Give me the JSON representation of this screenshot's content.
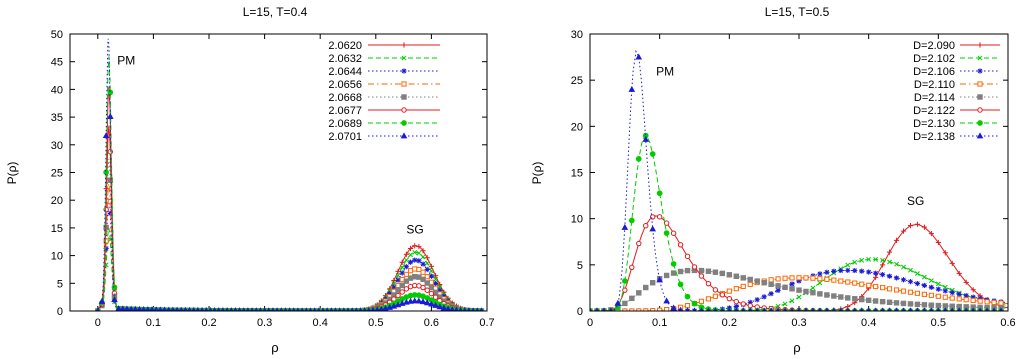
{
  "chart_data": [
    {
      "type": "line",
      "title": "L=15, T=0.4",
      "xlabel": "ρ",
      "ylabel": "P(ρ)",
      "xlim": [
        -0.05,
        0.7
      ],
      "ylim": [
        0,
        50
      ],
      "xticks": [
        0,
        0.1,
        0.2,
        0.3,
        0.4,
        0.5,
        0.6,
        0.7
      ],
      "xtick_labels": [
        "0",
        "0.1",
        "0.2",
        "0.3",
        "0.4",
        "0.5",
        "0.6",
        "0.7"
      ],
      "yticks": [
        0,
        5,
        10,
        15,
        20,
        25,
        30,
        35,
        40,
        45,
        50
      ],
      "ytick_labels": [
        "0",
        "5",
        "10",
        "15",
        "20",
        "25",
        "30",
        "35",
        "40",
        "45",
        "50"
      ],
      "legend_position": "top-right",
      "annotations": [
        {
          "text": "PM",
          "x": 0.035,
          "y": 44.5
        },
        {
          "text": "SG",
          "x": 0.555,
          "y": 14
        }
      ],
      "series": [
        {
          "name": "2.0620",
          "color": "#e41a1c",
          "dash": "solid",
          "marker": "plus",
          "pm_mode": 0.02,
          "pm_peak": 40.0,
          "pm_width": 0.0045,
          "sg_mode": 0.572,
          "sg_peak": 11.8,
          "sg_width": 0.032
        },
        {
          "name": "2.0632",
          "color": "#00cc00",
          "dash": "dashed",
          "marker": "x",
          "pm_mode": 0.02,
          "pm_peak": 14.5,
          "pm_width": 0.0045,
          "sg_mode": 0.572,
          "sg_peak": 10.6,
          "sg_width": 0.032
        },
        {
          "name": "2.0644",
          "color": "#1a1ad8",
          "dash": "dotted",
          "marker": "star",
          "pm_mode": 0.02,
          "pm_peak": 20.0,
          "pm_width": 0.0045,
          "sg_mode": 0.572,
          "sg_peak": 9.2,
          "sg_width": 0.032
        },
        {
          "name": "2.0656",
          "color": "#ff6600",
          "dash": "dashdot",
          "marker": "square-open",
          "pm_mode": 0.02,
          "pm_peak": 22.5,
          "pm_width": 0.0045,
          "sg_mode": 0.572,
          "sg_peak": 7.6,
          "sg_width": 0.032
        },
        {
          "name": "2.0668",
          "color": "#808080",
          "dash": "dotted",
          "marker": "square-filled",
          "pm_mode": 0.02,
          "pm_peak": 27.0,
          "pm_width": 0.0045,
          "sg_mode": 0.572,
          "sg_peak": 6.2,
          "sg_width": 0.032
        },
        {
          "name": "2.0677",
          "color": "#e41a1c",
          "dash": "solid",
          "marker": "circle-open",
          "pm_mode": 0.02,
          "pm_peak": 33.0,
          "pm_width": 0.0045,
          "sg_mode": 0.572,
          "sg_peak": 4.6,
          "sg_width": 0.032
        },
        {
          "name": "2.0689",
          "color": "#00cc00",
          "dash": "dashed",
          "marker": "circle-filled",
          "pm_mode": 0.02,
          "pm_peak": 45.5,
          "pm_width": 0.0045,
          "sg_mode": 0.572,
          "sg_peak": 2.9,
          "sg_width": 0.032
        },
        {
          "name": "2.0701",
          "color": "#1a1ad8",
          "dash": "dotted",
          "marker": "triangle-filled",
          "pm_mode": 0.019,
          "pm_peak": 49.0,
          "pm_width": 0.0042,
          "sg_mode": 0.572,
          "sg_peak": 1.8,
          "sg_width": 0.032
        }
      ]
    },
    {
      "type": "line",
      "title": "L=15, T=0.5",
      "xlabel": "ρ",
      "ylabel": "P(ρ)",
      "xlim": [
        0,
        0.6
      ],
      "ylim": [
        0,
        30
      ],
      "xticks": [
        0,
        0.1,
        0.2,
        0.3,
        0.4,
        0.5,
        0.6
      ],
      "xtick_labels": [
        "0",
        "0.1",
        "0.2",
        "0.3",
        "0.4",
        "0.5",
        "0.6"
      ],
      "yticks": [
        0,
        5,
        10,
        15,
        20,
        25,
        30
      ],
      "ytick_labels": [
        "0",
        "5",
        "10",
        "15",
        "20",
        "25",
        "30"
      ],
      "legend_position": "top-right",
      "annotations": [
        {
          "text": "PM",
          "x": 0.095,
          "y": 25.5
        },
        {
          "text": "SG",
          "x": 0.455,
          "y": 11.5
        }
      ],
      "series": [
        {
          "name": "D=2.090",
          "color": "#e41a1c",
          "dash": "solid",
          "marker": "plus",
          "mode": 0.468,
          "peak": 9.4,
          "width": 0.045
        },
        {
          "name": "D=2.102",
          "color": "#00cc00",
          "dash": "dashed",
          "marker": "x",
          "mode": 0.405,
          "peak": 5.6,
          "width": 0.075
        },
        {
          "name": "D=2.106",
          "color": "#1a1ad8",
          "dash": "dotted",
          "marker": "star",
          "mode": 0.37,
          "peak": 4.4,
          "width": 0.1
        },
        {
          "name": "D=2.110",
          "color": "#ff6600",
          "dash": "dashdot",
          "marker": "square-open",
          "mode": 0.3,
          "peak": 3.6,
          "width": 0.12
        },
        {
          "name": "D=2.114",
          "color": "#808080",
          "dash": "dotted",
          "marker": "square-filled",
          "mode": 0.15,
          "peak": 4.4,
          "width": 0.09
        },
        {
          "name": "D=2.122",
          "color": "#e41a1c",
          "dash": "solid",
          "marker": "circle-open",
          "mode": 0.095,
          "peak": 10.3,
          "width": 0.035
        },
        {
          "name": "D=2.130",
          "color": "#00cc00",
          "dash": "dashed",
          "marker": "circle-filled",
          "mode": 0.08,
          "peak": 19.0,
          "width": 0.02
        },
        {
          "name": "D=2.138",
          "color": "#1a1ad8",
          "dash": "dotted",
          "marker": "triangle-filled",
          "mode": 0.067,
          "peak": 28.2,
          "width": 0.013
        }
      ]
    }
  ]
}
